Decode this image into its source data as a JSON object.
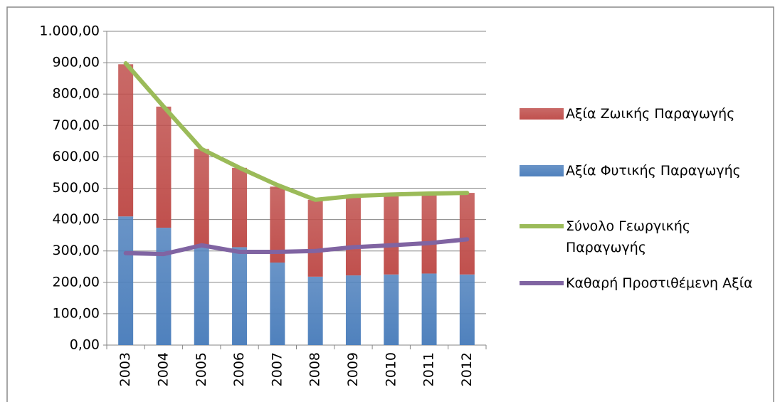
{
  "chart_data": {
    "type": "bar",
    "categories": [
      "2003",
      "2004",
      "2005",
      "2006",
      "2007",
      "2008",
      "2009",
      "2010",
      "2011",
      "2012"
    ],
    "series": [
      {
        "name": "Αξία Ζωικής Παραγωγής",
        "type": "bar",
        "color": "#c0504d",
        "values": [
          485,
          386,
          310,
          253,
          242,
          245,
          253,
          255,
          255,
          260
        ]
      },
      {
        "name": "Αξία Φυτικής Παραγωγής",
        "type": "bar",
        "color": "#4f81bd",
        "values": [
          410,
          374,
          315,
          312,
          263,
          218,
          222,
          225,
          228,
          225
        ]
      },
      {
        "name": "Σύνολο Γεωργικής Παραγωγής",
        "type": "line",
        "color": "#9bbb59",
        "values": [
          898,
          760,
          625,
          565,
          510,
          463,
          475,
          480,
          483,
          485
        ]
      },
      {
        "name": "Καθαρή Προστιθέμενη Αξία",
        "type": "line",
        "color": "#8064a2",
        "values": [
          293,
          290,
          318,
          297,
          297,
          300,
          312,
          318,
          325,
          337
        ]
      }
    ],
    "ylim": [
      0,
      1000
    ],
    "yticks": [
      {
        "value": 0,
        "label": "0,00"
      },
      {
        "value": 100,
        "label": "100,00"
      },
      {
        "value": 200,
        "label": "200,00"
      },
      {
        "value": 300,
        "label": "300,00"
      },
      {
        "value": 400,
        "label": "400,00"
      },
      {
        "value": 500,
        "label": "500,00"
      },
      {
        "value": 600,
        "label": "600,00"
      },
      {
        "value": 700,
        "label": "700,00"
      },
      {
        "value": 800,
        "label": "800,00"
      },
      {
        "value": 900,
        "label": "900,00"
      },
      {
        "value": 1000,
        "label": "1.000,00"
      }
    ],
    "grid": true,
    "legend": "right"
  }
}
